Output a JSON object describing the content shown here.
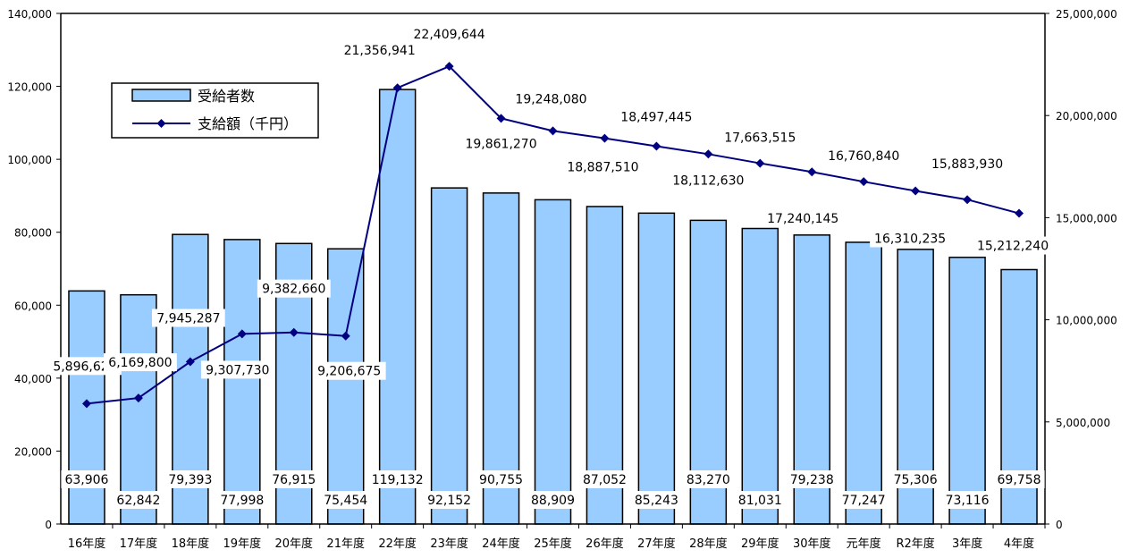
{
  "chart_data": {
    "type": "bar",
    "categories": [
      "16年度",
      "17年度",
      "18年度",
      "19年度",
      "20年度",
      "21年度",
      "22年度",
      "23年度",
      "24年度",
      "25年度",
      "26年度",
      "27年度",
      "28年度",
      "29年度",
      "30年度",
      "元年度",
      "R2年度",
      "3年度",
      "4年度"
    ],
    "series": [
      {
        "name": "受給者数",
        "type": "bar",
        "axis": "left",
        "color": "#99ccff",
        "values": [
          63906,
          62842,
          79393,
          77998,
          76915,
          75454,
          119132,
          92152,
          90755,
          88909,
          87052,
          85243,
          83270,
          81031,
          79238,
          77247,
          75306,
          73116,
          69758
        ],
        "labels": [
          "63,906",
          "62,842",
          "79,393",
          "77,998",
          "76,915",
          "75,454",
          "119,132",
          "92,152",
          "90,755",
          "88,909",
          "87,052",
          "85,243",
          "83,270",
          "81,031",
          "79,238",
          "77,247",
          "75,306",
          "73,116",
          "69,758"
        ]
      },
      {
        "name": "支給額（千円）",
        "type": "line",
        "axis": "right",
        "color": "#000080",
        "values": [
          5896625,
          6169800,
          7945287,
          9307730,
          9382660,
          9206675,
          21356941,
          22409644,
          19861270,
          19248080,
          18887510,
          18497445,
          18112630,
          17663515,
          17240145,
          16760840,
          16310235,
          15883930,
          15212240
        ],
        "labels": [
          "5,896,625",
          "6,169,800",
          "7,945,287",
          "9,307,730",
          "9,382,660",
          "9,206,675",
          "21,356,941",
          "22,409,644",
          "19,861,270",
          "19,248,080",
          "18,887,510",
          "18,497,445",
          "18,112,630",
          "17,663,515",
          "17,240,145",
          "16,760,840",
          "16,310,235",
          "15,883,930",
          "15,212,240"
        ]
      }
    ],
    "y_left": {
      "range": [
        0,
        140000
      ],
      "ticks": [
        0,
        20000,
        40000,
        60000,
        80000,
        100000,
        120000,
        140000
      ],
      "tick_labels": [
        "0",
        "20,000",
        "40,000",
        "60,000",
        "80,000",
        "100,000",
        "120,000",
        "140,000"
      ]
    },
    "y_right": {
      "range": [
        0,
        25000000
      ],
      "ticks": [
        0,
        5000000,
        10000000,
        15000000,
        20000000,
        25000000
      ],
      "tick_labels": [
        "0",
        "5,000,000",
        "10,000,000",
        "15,000,000",
        "20,000,000",
        "25,000,000"
      ]
    },
    "grid": false,
    "legend": "top-left",
    "title": "",
    "xlabel": "",
    "ylabel": ""
  }
}
